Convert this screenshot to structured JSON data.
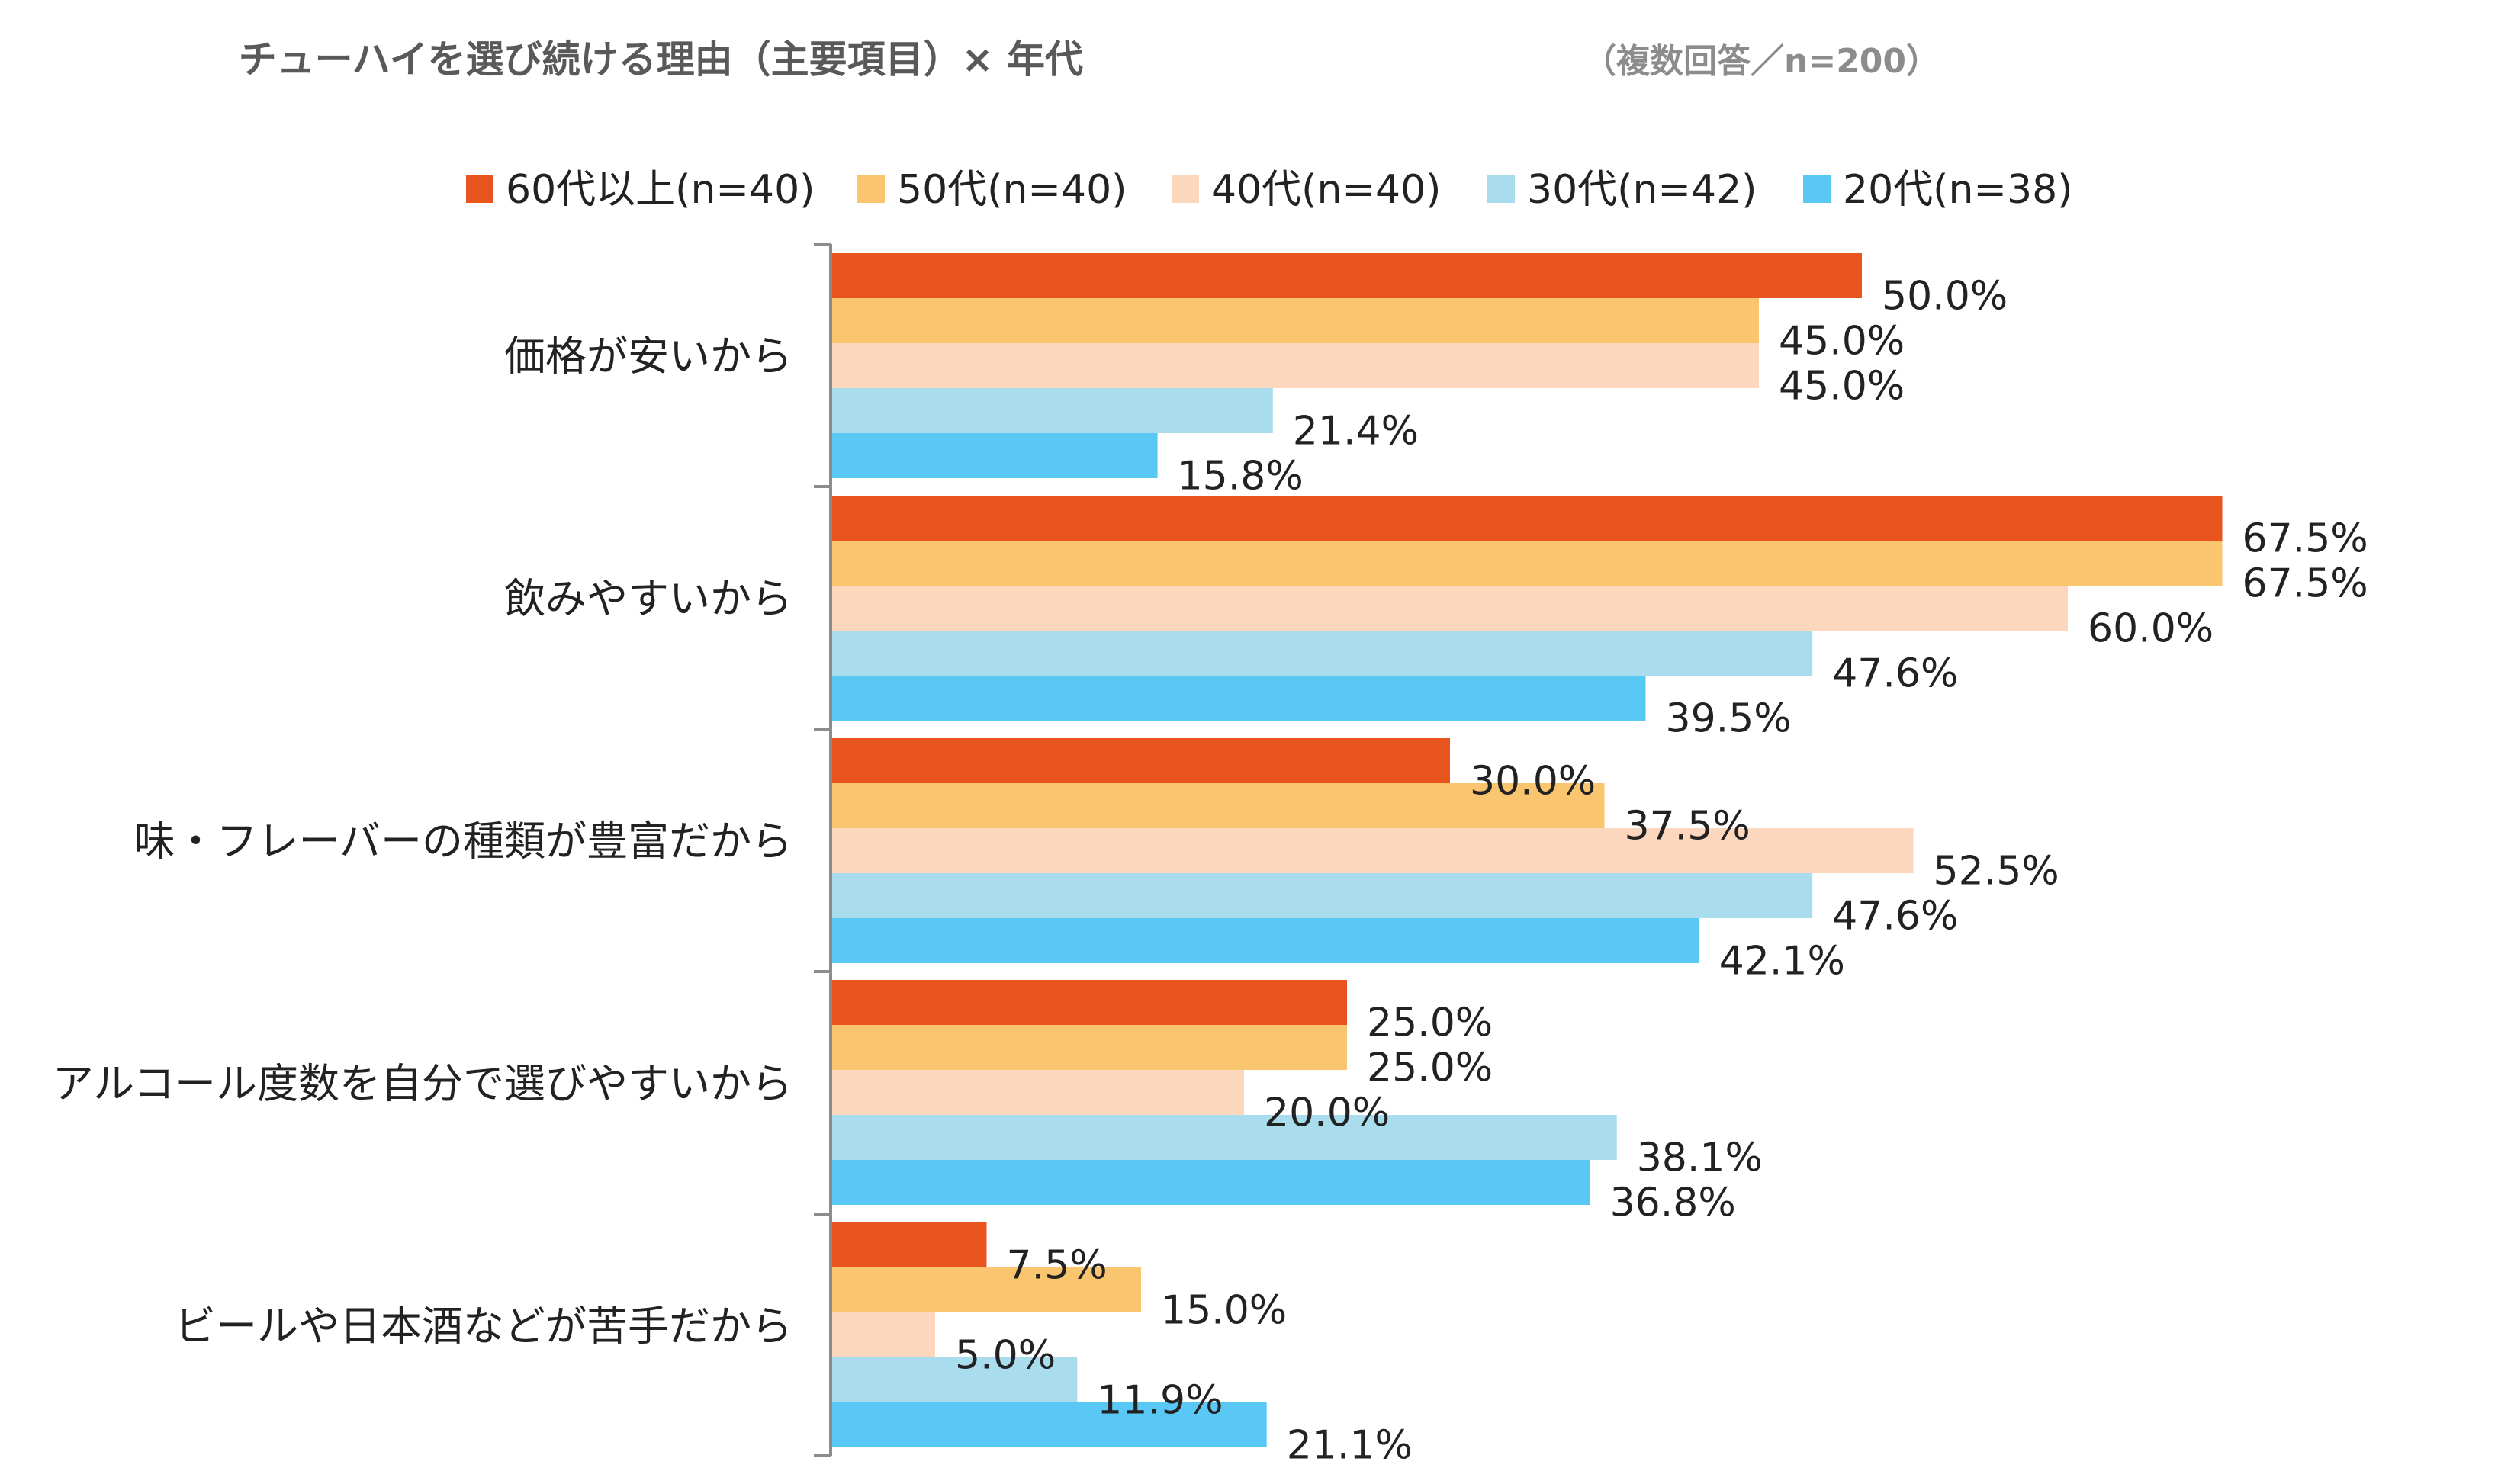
{
  "chart_data": {
    "type": "bar",
    "orientation": "horizontal",
    "title": "チューハイを選び続ける理由（主要項目）× 年代",
    "subtitle": "（複数回答／n=200）",
    "categories": [
      "価格が安いから",
      "飲みやすいから",
      "味・フレーバーの種類が豊富だから",
      "アルコール度数を自分で選びやすいから",
      "ビールや日本酒などが苦手だから"
    ],
    "series": [
      {
        "name": "60代以上(n=40)",
        "color": "#E8541E",
        "values": [
          50.0,
          67.5,
          30.0,
          25.0,
          7.5
        ]
      },
      {
        "name": "50代(n=40)",
        "color": "#F9C56E",
        "values": [
          45.0,
          67.5,
          37.5,
          25.0,
          15.0
        ]
      },
      {
        "name": "40代(n=40)",
        "color": "#FCD6BD",
        "values": [
          45.0,
          60.0,
          52.5,
          20.0,
          5.0
        ]
      },
      {
        "name": "30代(n=42)",
        "color": "#A9DDEE",
        "values": [
          21.4,
          47.6,
          47.6,
          38.1,
          11.9
        ]
      },
      {
        "name": "20代(n=38)",
        "color": "#5AC8F5",
        "values": [
          15.8,
          39.5,
          42.1,
          36.8,
          21.1
        ]
      }
    ],
    "value_suffix": "%",
    "xlim": [
      0,
      70
    ],
    "legend_position": "top",
    "grid": false
  }
}
